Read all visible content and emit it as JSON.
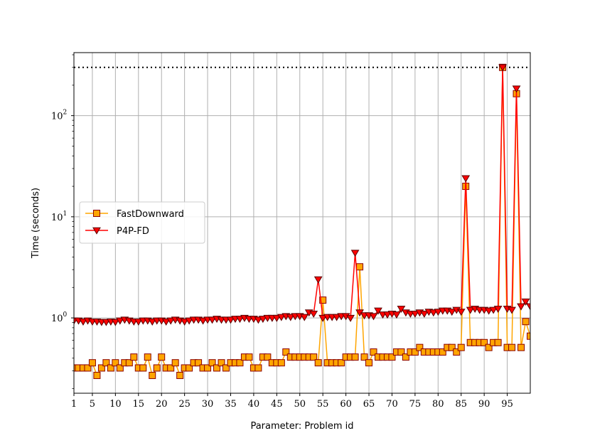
{
  "chart_data": {
    "type": "line",
    "title": "",
    "xlabel": "Parameter: Problem id",
    "ylabel": "Time (seconds)",
    "xlim": [
      1,
      100
    ],
    "ylim": [
      0.18,
      420
    ],
    "yscale": "log",
    "grid": true,
    "legend_position": "center-left",
    "x_ticks": [
      1,
      5,
      10,
      15,
      20,
      25,
      30,
      35,
      40,
      45,
      50,
      55,
      60,
      65,
      70,
      75,
      80,
      85,
      90,
      95
    ],
    "y_ticks": [
      {
        "value": 1,
        "base": "10",
        "exp": "0"
      },
      {
        "value": 10,
        "base": "10",
        "exp": "1"
      },
      {
        "value": 100,
        "base": "10",
        "exp": "2"
      }
    ],
    "timeout_line": {
      "value": 300,
      "style": "dotted",
      "color": "#000000"
    },
    "x": [
      1,
      2,
      3,
      4,
      5,
      6,
      7,
      8,
      9,
      10,
      11,
      12,
      13,
      14,
      15,
      16,
      17,
      18,
      19,
      20,
      21,
      22,
      23,
      24,
      25,
      26,
      27,
      28,
      29,
      30,
      31,
      32,
      33,
      34,
      35,
      36,
      37,
      38,
      39,
      40,
      41,
      42,
      43,
      44,
      45,
      46,
      47,
      48,
      49,
      50,
      51,
      52,
      53,
      54,
      55,
      56,
      57,
      58,
      59,
      60,
      61,
      62,
      63,
      64,
      65,
      66,
      67,
      68,
      69,
      70,
      71,
      72,
      73,
      74,
      75,
      76,
      77,
      78,
      79,
      80,
      81,
      82,
      83,
      84,
      85,
      86,
      87,
      88,
      89,
      90,
      91,
      92,
      93,
      94,
      95,
      96,
      97,
      98,
      99,
      100
    ],
    "series": [
      {
        "name": "FastDownward",
        "color": "#ffa500",
        "edge_color": "#8b0000",
        "marker": "square",
        "values": [
          0.32,
          0.32,
          0.32,
          0.32,
          0.36,
          0.27,
          0.32,
          0.36,
          0.32,
          0.36,
          0.32,
          0.36,
          0.36,
          0.41,
          0.32,
          0.32,
          0.41,
          0.27,
          0.32,
          0.41,
          0.32,
          0.32,
          0.36,
          0.27,
          0.32,
          0.32,
          0.36,
          0.36,
          0.32,
          0.32,
          0.36,
          0.32,
          0.36,
          0.32,
          0.36,
          0.36,
          0.36,
          0.41,
          0.41,
          0.32,
          0.32,
          0.41,
          0.41,
          0.36,
          0.36,
          0.36,
          0.46,
          0.41,
          0.41,
          0.41,
          0.41,
          0.41,
          0.41,
          0.36,
          1.5,
          0.36,
          0.36,
          0.36,
          0.36,
          0.41,
          0.41,
          0.41,
          3.2,
          0.41,
          0.36,
          0.46,
          0.41,
          0.41,
          0.41,
          0.41,
          0.46,
          0.46,
          0.41,
          0.46,
          0.46,
          0.51,
          0.46,
          0.46,
          0.46,
          0.46,
          0.46,
          0.51,
          0.51,
          0.46,
          0.51,
          20.0,
          0.57,
          0.57,
          0.57,
          0.57,
          0.51,
          0.57,
          0.57,
          300,
          0.51,
          0.51,
          165,
          0.51,
          0.92,
          0.66
        ]
      },
      {
        "name": "P4P-FD",
        "color": "#ff0000",
        "edge_color": "#5a0000",
        "marker": "triangle-down",
        "values": [
          0.94,
          0.94,
          0.92,
          0.94,
          0.92,
          0.92,
          0.91,
          0.91,
          0.92,
          0.91,
          0.94,
          0.96,
          0.94,
          0.92,
          0.92,
          0.94,
          0.94,
          0.92,
          0.94,
          0.94,
          0.92,
          0.94,
          0.96,
          0.94,
          0.92,
          0.94,
          0.96,
          0.96,
          0.94,
          0.96,
          0.96,
          0.98,
          0.96,
          0.96,
          0.96,
          0.98,
          0.98,
          1.0,
          0.98,
          0.98,
          0.96,
          0.98,
          1.0,
          1.0,
          1.0,
          1.02,
          1.04,
          1.02,
          1.04,
          1.04,
          1.02,
          1.13,
          1.1,
          2.4,
          1.0,
          1.02,
          1.02,
          1.02,
          1.04,
          1.04,
          1.0,
          4.4,
          1.13,
          1.06,
          1.06,
          1.04,
          1.18,
          1.08,
          1.08,
          1.1,
          1.08,
          1.23,
          1.13,
          1.1,
          1.1,
          1.13,
          1.1,
          1.15,
          1.13,
          1.15,
          1.18,
          1.18,
          1.15,
          1.2,
          1.15,
          24.0,
          1.2,
          1.23,
          1.2,
          1.2,
          1.18,
          1.2,
          1.23,
          300,
          1.23,
          1.2,
          185,
          1.3,
          1.45,
          1.3
        ]
      }
    ]
  }
}
